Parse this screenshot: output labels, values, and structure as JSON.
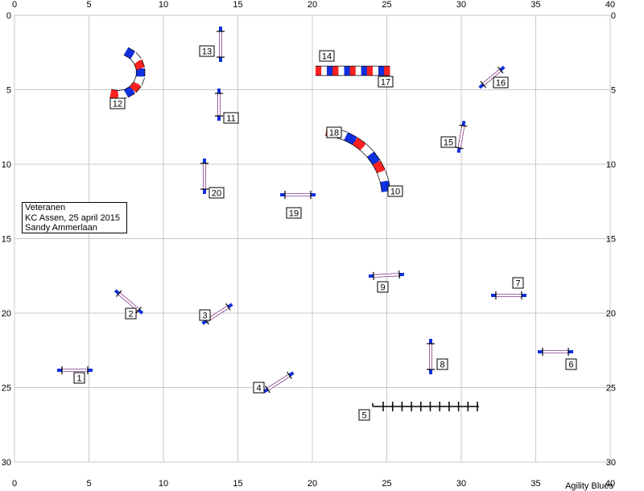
{
  "course": {
    "x_ticks": [
      "0",
      "5",
      "10",
      "15",
      "20",
      "25",
      "30",
      "35",
      "40"
    ],
    "y_ticks": [
      "0",
      "5",
      "10",
      "15",
      "20",
      "25",
      "30"
    ],
    "info": {
      "class_name": "Veteranen",
      "event": "KC Assen, 25 april 2015",
      "judge": "Sandy Ammerlaan"
    },
    "brand": "Agility Blues",
    "obstacles": [
      {
        "number": "1",
        "type": "hurdle"
      },
      {
        "number": "2",
        "type": "hurdle"
      },
      {
        "number": "3",
        "type": "hurdle"
      },
      {
        "number": "4",
        "type": "hurdle"
      },
      {
        "number": "5",
        "type": "weave-poles"
      },
      {
        "number": "6",
        "type": "hurdle"
      },
      {
        "number": "7",
        "type": "hurdle"
      },
      {
        "number": "8",
        "type": "hurdle"
      },
      {
        "number": "9",
        "type": "hurdle"
      },
      {
        "number": "10",
        "type": "tunnel-exit"
      },
      {
        "number": "11",
        "type": "hurdle"
      },
      {
        "number": "12",
        "type": "tunnel"
      },
      {
        "number": "13",
        "type": "hurdle"
      },
      {
        "number": "14",
        "type": "tunnel-entry"
      },
      {
        "number": "15",
        "type": "hurdle"
      },
      {
        "number": "16",
        "type": "hurdle"
      },
      {
        "number": "17",
        "type": "tunnel-exit"
      },
      {
        "number": "18",
        "type": "tunnel-entry"
      },
      {
        "number": "19",
        "type": "hurdle"
      },
      {
        "number": "20",
        "type": "hurdle"
      }
    ],
    "colors": {
      "red": "#ff2020",
      "blue": "#1030e0",
      "grid": "#c8c8c8"
    }
  }
}
